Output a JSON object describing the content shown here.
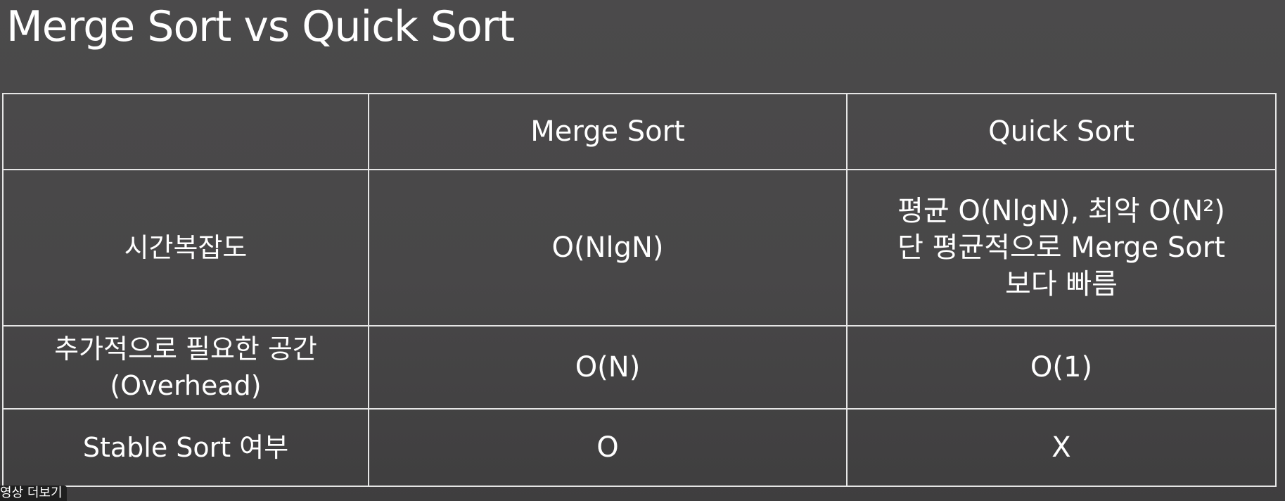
{
  "title": "Merge Sort vs Quick Sort",
  "table": {
    "header": {
      "corner": "",
      "col1": "Merge Sort",
      "col2": "Quick Sort"
    },
    "rows": [
      {
        "label": "시간복잡도",
        "label_line2": "",
        "merge": "O(NlgN)",
        "quick_line1": "평균 O(NlgN), 최악 O(N²)",
        "quick_line2": "단 평균적으로 Merge Sort",
        "quick_line3": "보다 빠름"
      },
      {
        "label": "추가적으로 필요한 공간",
        "label_line2": "(Overhead)",
        "merge": "O(N)",
        "quick": "O(1)"
      },
      {
        "label": "Stable Sort 여부",
        "merge": "O",
        "quick": "X"
      }
    ]
  },
  "caption": "영상 더보기"
}
